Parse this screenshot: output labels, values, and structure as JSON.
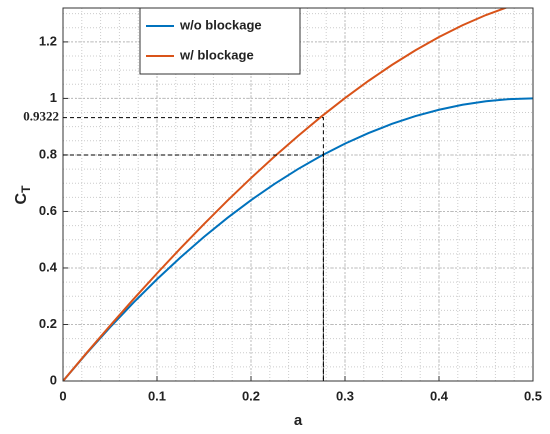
{
  "chart_data": {
    "type": "line",
    "xlabel": "a",
    "ylabel": {
      "main": "C",
      "sub": "T"
    },
    "x": [
      0,
      0.025,
      0.05,
      0.075,
      0.1,
      0.125,
      0.15,
      0.175,
      0.2,
      0.225,
      0.25,
      0.275,
      0.3,
      0.325,
      0.35,
      0.375,
      0.4,
      0.425,
      0.45,
      0.475,
      0.5
    ],
    "series": [
      {
        "name": "w/o blockage",
        "color": "#0072bd",
        "values": [
          0,
          0.0975,
          0.19,
          0.2775,
          0.36,
          0.4375,
          0.51,
          0.5775,
          0.64,
          0.6975,
          0.75,
          0.7975,
          0.84,
          0.8775,
          0.91,
          0.9375,
          0.96,
          0.9775,
          0.99,
          0.9975,
          1.0
        ]
      },
      {
        "name": "w/ blockage",
        "color": "#d95319",
        "values": [
          0,
          0.0989,
          0.1954,
          0.2894,
          0.3809,
          0.4696,
          0.5555,
          0.6384,
          0.7181,
          0.7944,
          0.8672,
          0.9362,
          1.0013,
          1.0621,
          1.1187,
          1.1704,
          1.2173,
          1.2589,
          1.2952,
          1.3256,
          null
        ]
      }
    ],
    "xlim": [
      0,
      0.5
    ],
    "xticks": [
      0,
      0.1,
      0.2,
      0.3,
      0.4,
      0.5
    ],
    "ylim": [
      0,
      1.32
    ],
    "yticks": [
      0,
      0.2,
      0.4,
      0.6,
      0.8,
      1,
      1.2
    ],
    "grid": true,
    "minor_grid": true,
    "legend": "top-left",
    "annotations": [
      {
        "x": 0.277,
        "y": 0.9322,
        "label": "0.9322"
      },
      {
        "x": 0.277,
        "y": 0.8
      }
    ]
  }
}
